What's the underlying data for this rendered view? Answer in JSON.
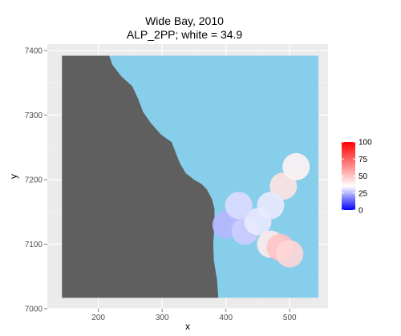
{
  "chart_data": {
    "type": "heatmap",
    "title": "Wide Bay, 2010",
    "subtitle": "ALP_2PP; white = 34.9",
    "xlabel": "x",
    "ylabel": "y",
    "xlim": [
      120,
      560
    ],
    "ylim": [
      7000,
      7410
    ],
    "x_ticks": [
      200,
      300,
      400,
      500
    ],
    "y_ticks": [
      7000,
      7100,
      7200,
      7300,
      7400
    ],
    "grid": true,
    "background": "#ebebeb",
    "colors": {
      "sea": "#87ceeb",
      "land_outside": "#5f5f5f",
      "low": "#0000ff",
      "mid": "#ffffff",
      "high": "#ff0000"
    },
    "legend": {
      "placement": "right",
      "min": 0,
      "max": 100,
      "midpoint": 34.9,
      "ticks": [
        0,
        25,
        50,
        75,
        100
      ]
    },
    "extent": {
      "x": [
        143,
        545
      ],
      "y": [
        7017,
        7392
      ]
    },
    "coastline": [
      [
        217,
        7392
      ],
      [
        222,
        7378
      ],
      [
        236,
        7360
      ],
      [
        253,
        7345
      ],
      [
        262,
        7326
      ],
      [
        270,
        7305
      ],
      [
        282,
        7288
      ],
      [
        298,
        7270
      ],
      [
        315,
        7258
      ],
      [
        322,
        7240
      ],
      [
        328,
        7225
      ],
      [
        337,
        7210
      ],
      [
        350,
        7200
      ],
      [
        362,
        7193
      ],
      [
        370,
        7185
      ],
      [
        378,
        7170
      ],
      [
        382,
        7155
      ],
      [
        382,
        7130
      ],
      [
        380,
        7100
      ],
      [
        381,
        7075
      ],
      [
        386,
        7045
      ],
      [
        388,
        7017
      ]
    ],
    "region_values": [
      {
        "x": 400,
        "y": 7130,
        "v": 25
      },
      {
        "x": 430,
        "y": 7120,
        "v": 28
      },
      {
        "x": 450,
        "y": 7135,
        "v": 32
      },
      {
        "x": 470,
        "y": 7100,
        "v": 40
      },
      {
        "x": 485,
        "y": 7095,
        "v": 50
      },
      {
        "x": 500,
        "y": 7085,
        "v": 45
      },
      {
        "x": 490,
        "y": 7190,
        "v": 42
      },
      {
        "x": 510,
        "y": 7220,
        "v": 38
      },
      {
        "x": 420,
        "y": 7160,
        "v": 30
      },
      {
        "x": 470,
        "y": 7160,
        "v": 32
      }
    ]
  }
}
